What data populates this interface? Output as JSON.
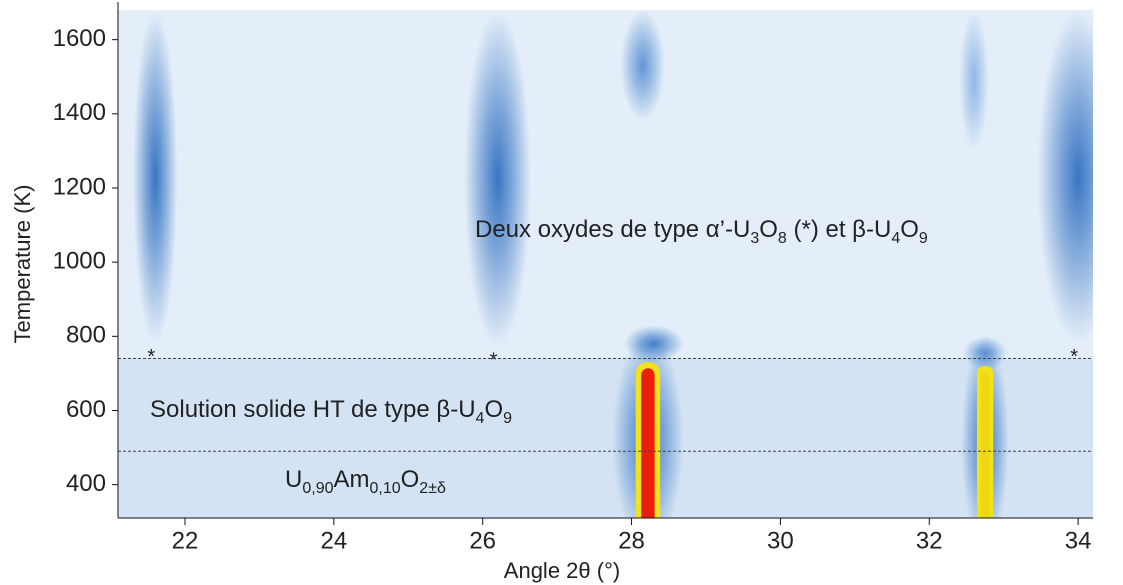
{
  "chart_data": {
    "type": "heatmap",
    "xlabel": "Angle 2θ (°)",
    "ylabel": "Temperature (K)",
    "xlim": [
      21.1,
      34.2
    ],
    "ylim": [
      310,
      1680
    ],
    "xticks": [
      22,
      24,
      26,
      28,
      30,
      32,
      34
    ],
    "yticks": [
      400,
      600,
      800,
      1000,
      1200,
      1400,
      1600
    ],
    "boundaries": [
      740,
      490
    ],
    "peaks": [
      {
        "x": 21.6,
        "t": [
          780,
          1680
        ],
        "width": 0.3,
        "color": "#2f6fc0",
        "label": "*"
      },
      {
        "x": 26.2,
        "t": [
          770,
          1680
        ],
        "width": 0.45,
        "color": "#2f6fc0",
        "label": "*"
      },
      {
        "x": 34.0,
        "t": [
          780,
          1680
        ],
        "width": 0.55,
        "color": "#2f6fc0",
        "label": "*"
      },
      {
        "x": 28.15,
        "t": [
          1380,
          1680
        ],
        "width": 0.3,
        "color": "#5a92d4"
      },
      {
        "x": 28.3,
        "t": [
          730,
          830
        ],
        "width": 0.4,
        "color": "#3a7cc8"
      },
      {
        "x": 32.6,
        "t": [
          1300,
          1680
        ],
        "width": 0.2,
        "color": "#8ab4e4"
      },
      {
        "x": 32.75,
        "t": [
          710,
          800
        ],
        "width": 0.3,
        "color": "#5a92d4"
      },
      {
        "x": 28.22,
        "t": [
          310,
          730
        ],
        "width": 0.3,
        "color": "#e8200a",
        "hot": true
      },
      {
        "x": 32.75,
        "t": [
          310,
          720
        ],
        "width": 0.2,
        "color": "#f0d810",
        "hot": true
      }
    ],
    "annotations": [
      {
        "parts": [
          "Deux oxydes de type α’-U",
          {
            "sub": "3"
          },
          "O",
          {
            "sub": "8"
          },
          " (*) et β-U",
          {
            "sub": "4"
          },
          "O",
          {
            "sub": "9"
          }
        ]
      },
      {
        "parts": [
          "Solution solide HT de type β-U",
          {
            "sub": "4"
          },
          "O",
          {
            "sub": "9"
          }
        ]
      },
      {
        "parts": [
          "U",
          {
            "sub": "0,90"
          },
          "Am",
          {
            "sub": "0,10"
          },
          "O",
          {
            "sub": "2±δ"
          }
        ]
      }
    ]
  }
}
